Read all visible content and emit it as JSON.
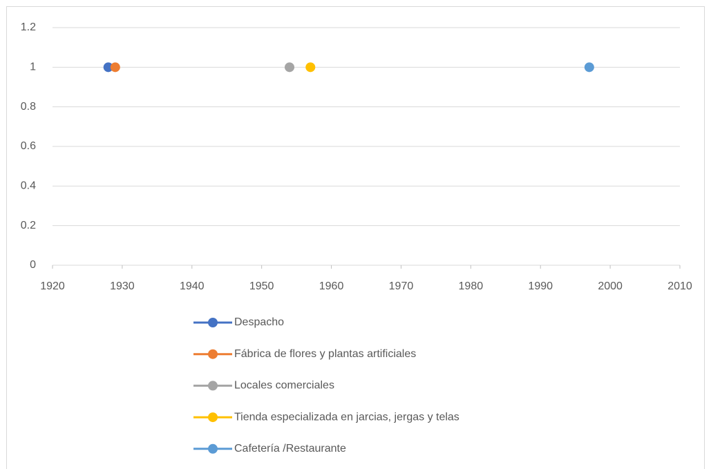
{
  "chart_data": {
    "type": "scatter",
    "series": [
      {
        "name": "Despacho",
        "color": "#4472c4",
        "x": [
          1928
        ],
        "values": [
          1
        ]
      },
      {
        "name": "Fábrica de flores y plantas artificiales",
        "color": "#ed7d31",
        "x": [
          1929
        ],
        "values": [
          1
        ]
      },
      {
        "name": "Locales comerciales",
        "color": "#a5a5a5",
        "x": [
          1954
        ],
        "values": [
          1
        ]
      },
      {
        "name": "Tienda especializada en jarcias, jergas y telas",
        "color": "#ffc000",
        "x": [
          1957
        ],
        "values": [
          1
        ]
      },
      {
        "name": "Cafetería /Restaurante",
        "color": "#5b9bd5",
        "x": [
          1997
        ],
        "values": [
          1
        ]
      }
    ],
    "xlim": [
      1920,
      2010
    ],
    "xticks": [
      1920,
      1930,
      1940,
      1950,
      1960,
      1970,
      1980,
      1990,
      2000,
      2010
    ],
    "ylim": [
      0,
      1.2
    ],
    "yticks": [
      0,
      0.2,
      0.4,
      0.6,
      0.8,
      1,
      1.2
    ],
    "grid": true,
    "legend": "bottom"
  }
}
